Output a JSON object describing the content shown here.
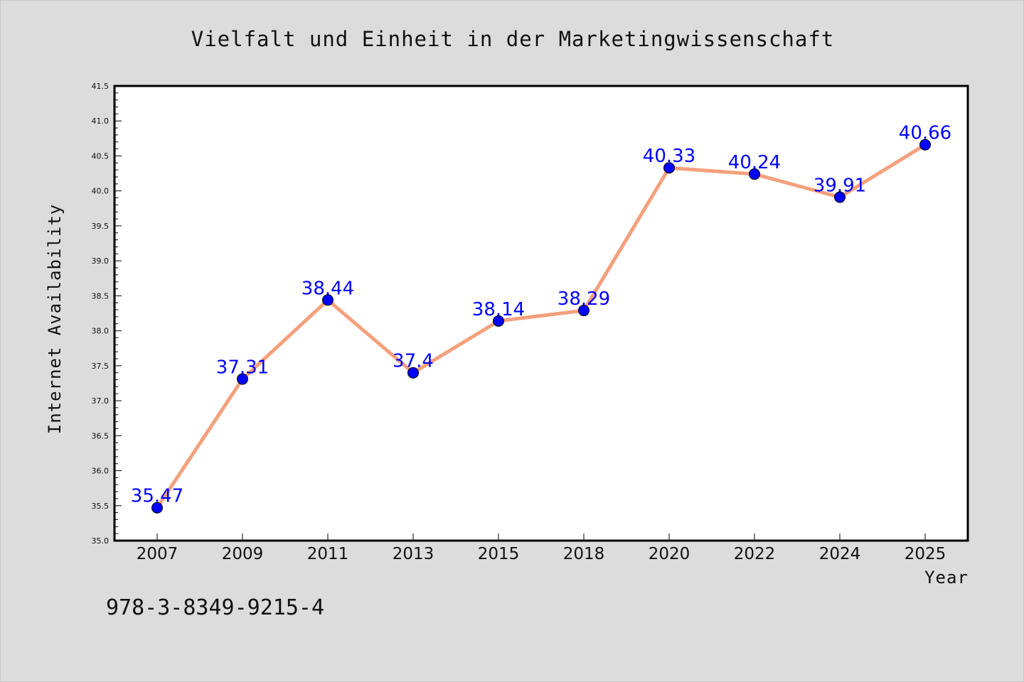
{
  "chart_data": {
    "type": "line",
    "title": "Vielfalt und Einheit in der Marketingwissenschaft",
    "xlabel": "Year",
    "ylabel": "Internet Availability",
    "categories": [
      "2007",
      "2009",
      "2011",
      "2013",
      "2015",
      "2018",
      "2020",
      "2022",
      "2024",
      "2025"
    ],
    "series": [
      {
        "values": [
          35.47,
          37.31,
          38.44,
          37.4,
          38.14,
          38.29,
          40.33,
          40.24,
          39.91,
          40.66
        ],
        "data_labels": [
          "35.47",
          "37.31",
          "38.44",
          "37.4",
          "38.14",
          "38.29",
          "40.33",
          "40.24",
          "39.91",
          "40.66"
        ]
      }
    ],
    "ylim": [
      35.0,
      41.5
    ],
    "yticks": [
      "35.0",
      "35.5",
      "36.0",
      "36.5",
      "37.0",
      "37.5",
      "38.0",
      "38.5",
      "39.0",
      "39.5",
      "40.0",
      "40.5",
      "41.0",
      "41.5"
    ],
    "grid": false,
    "legend": "none",
    "colors": {
      "line": "#f4a07c",
      "marker": "#0000ff",
      "data_label": "#0000ff",
      "background": "#dcdcdc",
      "plot_background": "#ffffff"
    }
  },
  "footer": {
    "isbn": "978-3-8349-9215-4"
  }
}
